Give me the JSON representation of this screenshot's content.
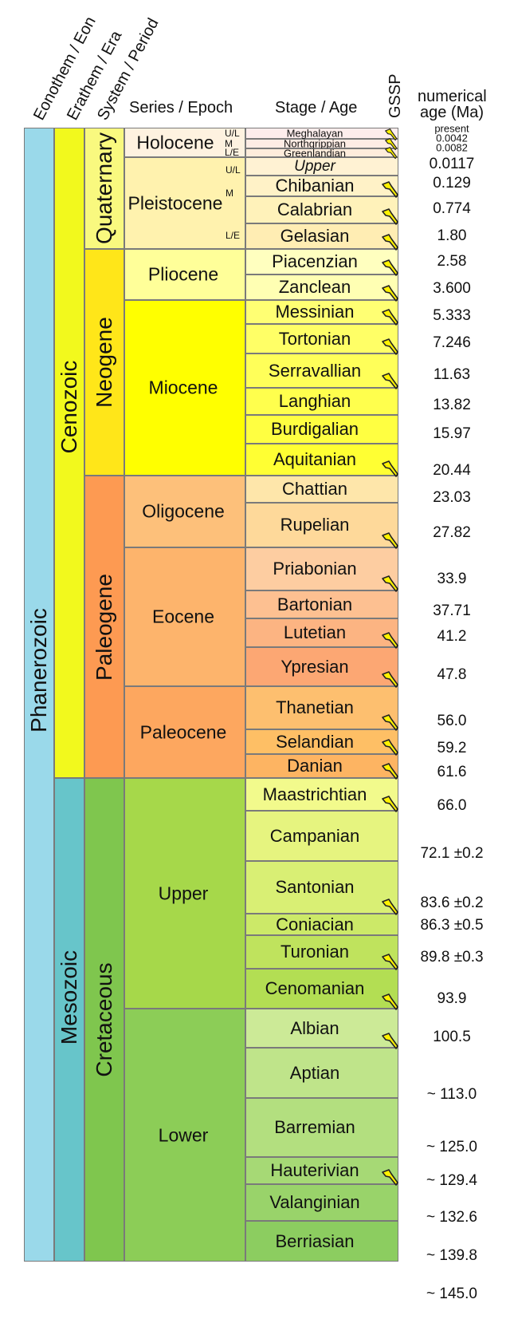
{
  "headers": {
    "eon": "Eonothem / Eon",
    "era": "Erathem / Era",
    "period": "System / Period",
    "epoch": "Series / Epoch",
    "stage": "Stage / Age",
    "gssp": "GSSP",
    "age_line1": "numerical",
    "age_line2": "age (Ma)"
  },
  "eons": [
    {
      "name": "Phanerozoic",
      "color": "#9AD9EA",
      "top": 0,
      "bottom": 145.0
    }
  ],
  "eras": [
    {
      "name": "Cenozoic",
      "color": "#F2F91D",
      "top": 0,
      "bottom": 66.0
    },
    {
      "name": "Mesozoic",
      "color": "#67C5CA",
      "top": 66.0,
      "bottom": 145.0
    }
  ],
  "periods": [
    {
      "name": "Quaternary",
      "color": "#F9F97F",
      "top": 0,
      "bottom": 2.58
    },
    {
      "name": "Neogene",
      "color": "#FFE619",
      "top": 2.58,
      "bottom": 23.03
    },
    {
      "name": "Paleogene",
      "color": "#FD9A52",
      "top": 23.03,
      "bottom": 66.0
    },
    {
      "name": "Cretaceous",
      "color": "#7FC64E",
      "top": 66.0,
      "bottom": 145.0
    }
  ],
  "epochs": [
    {
      "name": "Holocene",
      "color": "#FEF2E0",
      "top": 0,
      "bottom": 0.0117
    },
    {
      "name": "Pleistocene",
      "color": "#FFF2AE",
      "top": 0.0117,
      "bottom": 2.58
    },
    {
      "name": "Pliocene",
      "color": "#FFFF99",
      "top": 2.58,
      "bottom": 5.333
    },
    {
      "name": "Miocene",
      "color": "#FFFF00",
      "top": 5.333,
      "bottom": 23.03
    },
    {
      "name": "Oligocene",
      "color": "#FDC07A",
      "top": 23.03,
      "bottom": 33.9
    },
    {
      "name": "Eocene",
      "color": "#FDB46C",
      "top": 33.9,
      "bottom": 56.0
    },
    {
      "name": "Paleocene",
      "color": "#FDA75F",
      "top": 56.0,
      "bottom": 66.0
    },
    {
      "name": "Upper",
      "color": "#A6D84A",
      "top": 66.0,
      "bottom": 100.5
    },
    {
      "name": "Lower",
      "color": "#8CCD57",
      "top": 100.5,
      "bottom": 145.0
    }
  ],
  "holocene_subdivisions": [
    "U/L",
    "M",
    "L/E"
  ],
  "pleistocene_subdivisions": [
    "U/L",
    "M",
    "L/E"
  ],
  "stages": [
    {
      "name": "Meghalayan",
      "color": "#FDEDEC",
      "gssp": true,
      "size": "small"
    },
    {
      "name": "Northgrippian",
      "color": "#FDECE4",
      "gssp": true,
      "size": "small"
    },
    {
      "name": "Greenlandian",
      "color": "#FEECDB",
      "gssp": true,
      "size": "small"
    },
    {
      "name": "Upper",
      "color": "#FFF2D3",
      "gssp": false,
      "size": "italic"
    },
    {
      "name": "Chibanian",
      "color": "#FFF2C7",
      "gssp": true
    },
    {
      "name": "Calabrian",
      "color": "#FFF2BA",
      "gssp": true
    },
    {
      "name": "Gelasian",
      "color": "#FFEDB3",
      "gssp": true
    },
    {
      "name": "Piacenzian",
      "color": "#FFFFBF",
      "gssp": true
    },
    {
      "name": "Zanclean",
      "color": "#FFFFB3",
      "gssp": true
    },
    {
      "name": "Messinian",
      "color": "#FFFF73",
      "gssp": true
    },
    {
      "name": "Tortonian",
      "color": "#FFFF66",
      "gssp": true
    },
    {
      "name": "Serravallian",
      "color": "#FFFF59",
      "gssp": true
    },
    {
      "name": "Langhian",
      "color": "#FFFF4D",
      "gssp": false
    },
    {
      "name": "Burdigalian",
      "color": "#FFFF41",
      "gssp": false
    },
    {
      "name": "Aquitanian",
      "color": "#FFFF33",
      "gssp": true
    },
    {
      "name": "Chattian",
      "color": "#FEE6AA",
      "gssp": false
    },
    {
      "name": "Rupelian",
      "color": "#FED99A",
      "gssp": true
    },
    {
      "name": "Priabonian",
      "color": "#FDCDA1",
      "gssp": true
    },
    {
      "name": "Bartonian",
      "color": "#FDC091",
      "gssp": false
    },
    {
      "name": "Lutetian",
      "color": "#FCB482",
      "gssp": true
    },
    {
      "name": "Ypresian",
      "color": "#FCA773",
      "gssp": true
    },
    {
      "name": "Thanetian",
      "color": "#FDBF6F",
      "gssp": true
    },
    {
      "name": "Selandian",
      "color": "#FEBF65",
      "gssp": true
    },
    {
      "name": "Danian",
      "color": "#FDB462",
      "gssp": true
    },
    {
      "name": "Maastrichtian",
      "color": "#F2FA8C",
      "gssp": true
    },
    {
      "name": "Campanian",
      "color": "#E6F47F",
      "gssp": false
    },
    {
      "name": "Santonian",
      "color": "#D9EF74",
      "gssp": true
    },
    {
      "name": "Coniacian",
      "color": "#CCE968",
      "gssp": false
    },
    {
      "name": "Turonian",
      "color": "#BFE35D",
      "gssp": true
    },
    {
      "name": "Cenomanian",
      "color": "#B3DE53",
      "gssp": true
    },
    {
      "name": "Albian",
      "color": "#CCEA97",
      "gssp": true
    },
    {
      "name": "Aptian",
      "color": "#BFE48A",
      "gssp": false
    },
    {
      "name": "Barremian",
      "color": "#B3DF7F",
      "gssp": false
    },
    {
      "name": "Hauterivian",
      "color": "#A6D975",
      "gssp": true
    },
    {
      "name": "Valanginian",
      "color": "#99D36A",
      "gssp": false
    },
    {
      "name": "Berriasian",
      "color": "#8CCD60",
      "gssp": false
    }
  ],
  "ages": [
    {
      "label": "present",
      "size": "small"
    },
    {
      "label": "0.0042",
      "size": "small"
    },
    {
      "label": "0.0082",
      "size": "small"
    },
    {
      "label": "0.0117"
    },
    {
      "label": "0.129"
    },
    {
      "label": "0.774"
    },
    {
      "label": "1.80"
    },
    {
      "label": "2.58"
    },
    {
      "label": "3.600"
    },
    {
      "label": "5.333"
    },
    {
      "label": "7.246"
    },
    {
      "label": "11.63"
    },
    {
      "label": "13.82"
    },
    {
      "label": "15.97"
    },
    {
      "label": "20.44"
    },
    {
      "label": "23.03"
    },
    {
      "label": "27.82"
    },
    {
      "label": "33.9"
    },
    {
      "label": "37.71"
    },
    {
      "label": "41.2"
    },
    {
      "label": "47.8"
    },
    {
      "label": "56.0"
    },
    {
      "label": "59.2"
    },
    {
      "label": "61.6"
    },
    {
      "label": "66.0"
    },
    {
      "label": "72.1 ±0.2"
    },
    {
      "label": "83.6 ±0.2"
    },
    {
      "label": "86.3 ±0.5"
    },
    {
      "label": "89.8 ±0.3"
    },
    {
      "label": "93.9"
    },
    {
      "label": "100.5"
    },
    {
      "label": "~ 113.0"
    },
    {
      "label": "~ 125.0"
    },
    {
      "label": "~ 129.4"
    },
    {
      "label": "~ 132.6"
    },
    {
      "label": "~ 139.8"
    },
    {
      "label": "~ 145.0"
    }
  ],
  "colors": {
    "gssp_spike": "#FFF200",
    "gssp_outline": "#222222",
    "border": "#7a7a7a"
  }
}
